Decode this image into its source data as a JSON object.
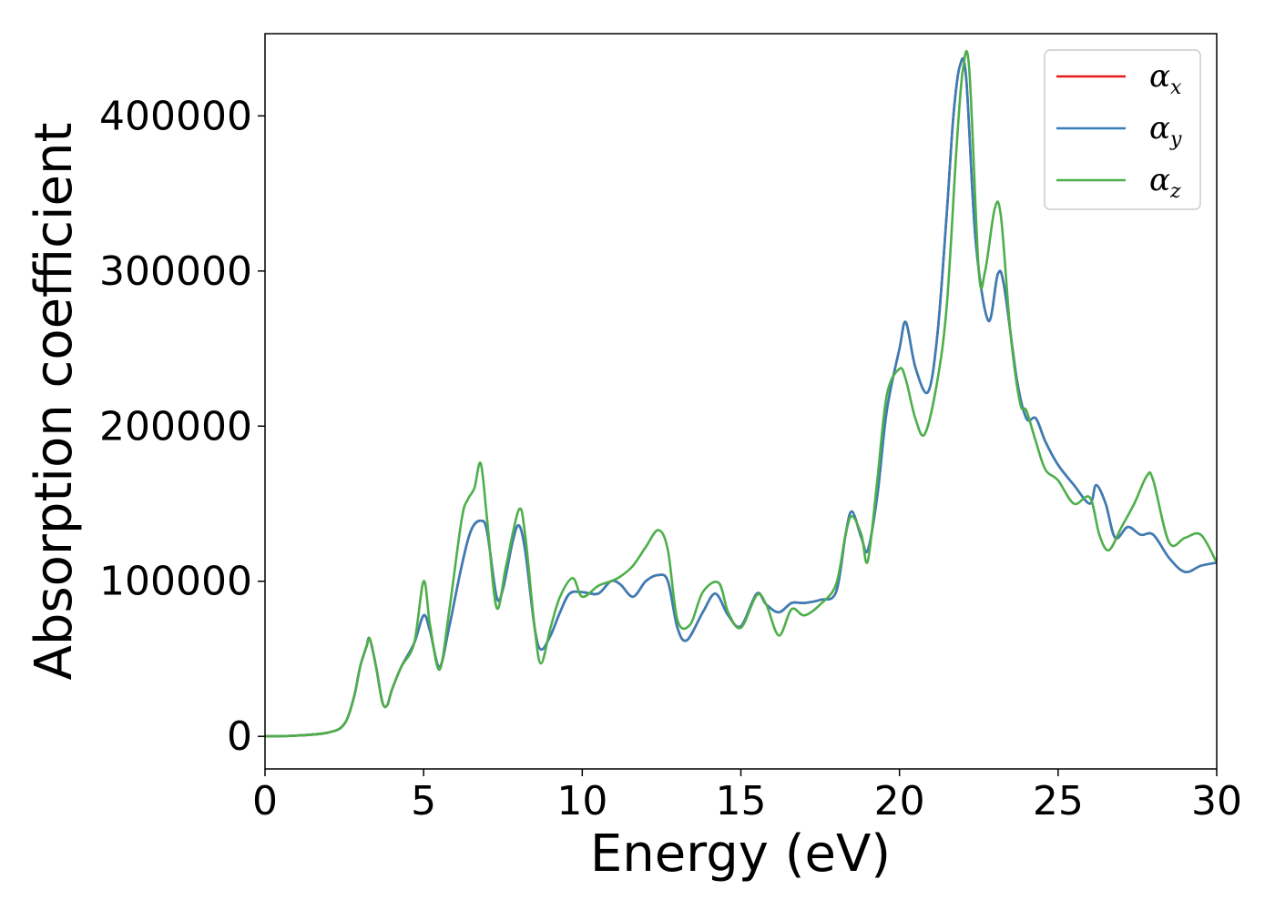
{
  "chart_data": {
    "type": "line",
    "title": "",
    "xlabel": "Energy (eV)",
    "ylabel": "Absorption coefficient",
    "xlim": [
      0,
      30
    ],
    "ylim": [
      -21000,
      453000
    ],
    "xticks": [
      0,
      5,
      10,
      15,
      20,
      25,
      30
    ],
    "yticks": [
      0,
      100000,
      200000,
      300000,
      400000
    ],
    "grid": false,
    "legend_position": "top-right",
    "series": [
      {
        "name": "αx",
        "legend_symbol": "α",
        "legend_sub": "x",
        "color": "#e41a1c",
        "x": [
          0,
          1,
          2,
          2.5,
          2.8,
          3.0,
          3.2,
          3.3,
          3.5,
          3.7,
          3.85,
          4.0,
          4.3,
          4.7,
          5.0,
          5.2,
          5.5,
          5.8,
          6.2,
          6.5,
          6.8,
          7.0,
          7.3,
          7.5,
          7.8,
          8.0,
          8.2,
          8.5,
          8.7,
          9.0,
          9.3,
          9.6,
          10.0,
          10.5,
          10.9,
          11.2,
          11.6,
          12.0,
          12.4,
          12.7,
          13.0,
          13.3,
          13.8,
          14.2,
          14.6,
          15.0,
          15.5,
          15.8,
          16.2,
          16.6,
          17.0,
          17.5,
          18.0,
          18.3,
          18.5,
          18.8,
          19.0,
          19.3,
          19.6,
          20.0,
          20.2,
          20.5,
          20.9,
          21.2,
          21.5,
          21.7,
          21.9,
          22.1,
          22.4,
          22.8,
          23.1,
          23.3,
          23.7,
          24.0,
          24.3,
          24.6,
          25.0,
          25.5,
          26.0,
          26.2,
          26.5,
          26.8,
          27.2,
          27.6,
          28.0,
          28.5,
          29.0,
          29.5,
          30.0
        ],
        "values": [
          0,
          500,
          2500,
          8000,
          25000,
          45000,
          58000,
          63000,
          45000,
          22000,
          20000,
          30000,
          45000,
          60000,
          78000,
          68000,
          45000,
          70000,
          110000,
          133000,
          139000,
          132000,
          90000,
          95000,
          125000,
          136000,
          120000,
          70000,
          56000,
          65000,
          80000,
          92000,
          93000,
          92000,
          100000,
          98000,
          90000,
          100000,
          104000,
          100000,
          70000,
          62000,
          80000,
          92000,
          78000,
          71000,
          92000,
          85000,
          80000,
          86000,
          86000,
          88000,
          93000,
          130000,
          145000,
          128000,
          120000,
          155000,
          210000,
          250000,
          267000,
          238000,
          222000,
          260000,
          340000,
          400000,
          432000,
          425000,
          320000,
          268000,
          298000,
          290000,
          230000,
          205000,
          205000,
          190000,
          175000,
          162000,
          150000,
          162000,
          150000,
          128000,
          135000,
          130000,
          130000,
          115000,
          106000,
          110000,
          112000
        ]
      },
      {
        "name": "αy",
        "legend_symbol": "α",
        "legend_sub": "y",
        "color": "#377eb8",
        "x": [
          0,
          1,
          2,
          2.5,
          2.8,
          3.0,
          3.2,
          3.3,
          3.5,
          3.7,
          3.85,
          4.0,
          4.3,
          4.7,
          5.0,
          5.2,
          5.5,
          5.8,
          6.2,
          6.5,
          6.8,
          7.0,
          7.3,
          7.5,
          7.8,
          8.0,
          8.2,
          8.5,
          8.7,
          9.0,
          9.3,
          9.6,
          10.0,
          10.5,
          10.9,
          11.2,
          11.6,
          12.0,
          12.4,
          12.7,
          13.0,
          13.3,
          13.8,
          14.2,
          14.6,
          15.0,
          15.5,
          15.8,
          16.2,
          16.6,
          17.0,
          17.5,
          18.0,
          18.3,
          18.5,
          18.8,
          19.0,
          19.3,
          19.6,
          20.0,
          20.2,
          20.5,
          20.9,
          21.2,
          21.5,
          21.7,
          21.9,
          22.1,
          22.4,
          22.8,
          23.1,
          23.3,
          23.7,
          24.0,
          24.3,
          24.6,
          25.0,
          25.5,
          26.0,
          26.2,
          26.5,
          26.8,
          27.2,
          27.6,
          28.0,
          28.5,
          29.0,
          29.5,
          30.0
        ],
        "values": [
          0,
          500,
          2500,
          8000,
          25000,
          45000,
          58000,
          63000,
          45000,
          22000,
          20000,
          30000,
          45000,
          60000,
          78000,
          68000,
          45000,
          70000,
          110000,
          133000,
          139000,
          132000,
          90000,
          95000,
          125000,
          136000,
          120000,
          70000,
          56000,
          65000,
          80000,
          92000,
          93000,
          92000,
          100000,
          98000,
          90000,
          100000,
          104000,
          100000,
          70000,
          62000,
          80000,
          92000,
          78000,
          71000,
          92000,
          85000,
          80000,
          86000,
          86000,
          88000,
          93000,
          130000,
          145000,
          128000,
          120000,
          155000,
          210000,
          250000,
          267000,
          238000,
          222000,
          260000,
          340000,
          400000,
          432000,
          425000,
          320000,
          268000,
          298000,
          290000,
          230000,
          205000,
          205000,
          190000,
          175000,
          162000,
          150000,
          162000,
          150000,
          128000,
          135000,
          130000,
          130000,
          115000,
          106000,
          110000,
          112000
        ]
      },
      {
        "name": "αz",
        "legend_symbol": "α",
        "legend_sub": "z",
        "color": "#4daf4a",
        "x": [
          0,
          1,
          2,
          2.5,
          2.8,
          3.0,
          3.2,
          3.3,
          3.5,
          3.7,
          3.85,
          4.0,
          4.3,
          4.7,
          5.0,
          5.2,
          5.5,
          5.8,
          6.2,
          6.4,
          6.6,
          6.8,
          7.0,
          7.3,
          7.6,
          8.0,
          8.2,
          8.5,
          8.7,
          9.0,
          9.3,
          9.7,
          10.0,
          10.5,
          10.9,
          11.2,
          11.6,
          12.0,
          12.4,
          12.7,
          13.0,
          13.4,
          13.8,
          14.3,
          14.6,
          15.0,
          15.5,
          15.8,
          16.2,
          16.6,
          17.0,
          17.5,
          18.0,
          18.3,
          18.5,
          18.8,
          19.0,
          19.3,
          19.6,
          20.0,
          20.2,
          20.5,
          20.8,
          21.2,
          21.5,
          21.8,
          22.0,
          22.2,
          22.5,
          22.7,
          23.0,
          23.2,
          23.5,
          23.8,
          24.0,
          24.3,
          24.6,
          25.0,
          25.5,
          26.0,
          26.3,
          26.6,
          27.0,
          27.4,
          27.8,
          28.0,
          28.5,
          29.0,
          29.5,
          30.0
        ],
        "values": [
          0,
          500,
          2500,
          8000,
          25000,
          45000,
          58000,
          63000,
          45000,
          22000,
          20000,
          30000,
          45000,
          60000,
          100000,
          72000,
          43000,
          80000,
          140000,
          153000,
          160000,
          176000,
          140000,
          83000,
          110000,
          146000,
          130000,
          70000,
          47000,
          70000,
          90000,
          102000,
          90000,
          97000,
          100000,
          103000,
          110000,
          122000,
          133000,
          120000,
          75000,
          72000,
          93000,
          99000,
          80000,
          70000,
          91000,
          85000,
          65000,
          82000,
          78000,
          85000,
          98000,
          130000,
          142000,
          130000,
          113000,
          165000,
          220000,
          237000,
          230000,
          205000,
          195000,
          230000,
          280000,
          380000,
          430000,
          430000,
          300000,
          300000,
          340000,
          335000,
          260000,
          215000,
          210000,
          190000,
          172000,
          165000,
          150000,
          154000,
          130000,
          120000,
          135000,
          150000,
          168000,
          165000,
          125000,
          128000,
          130000,
          112000
        ]
      }
    ]
  }
}
